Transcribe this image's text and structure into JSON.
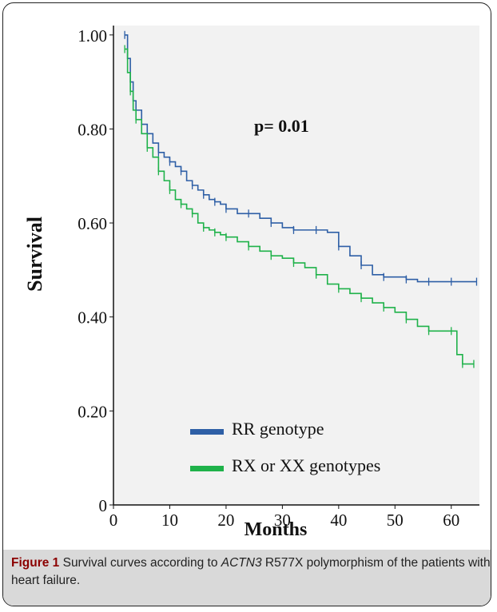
{
  "chart_data": {
    "type": "line",
    "subtype": "kaplan-meier",
    "xlabel": "Months",
    "ylabel": "Survival",
    "xlim": [
      0,
      65
    ],
    "ylim": [
      0,
      1.02
    ],
    "x_ticks": [
      "0",
      "10",
      "20",
      "30",
      "40",
      "50",
      "60"
    ],
    "y_ticks": [
      "0",
      "0.20",
      "0.40",
      "0.60",
      "0.80",
      "1.00"
    ],
    "annotation": "p= 0.01",
    "legend_placement": "bottom-left",
    "series": [
      {
        "name": "RR genotype",
        "color": "#2e5fa6",
        "x": [
          2,
          2.5,
          3,
          3.5,
          4,
          5,
          6,
          7,
          8,
          9,
          10,
          11,
          12,
          13,
          14,
          15,
          16,
          17,
          18,
          19,
          20,
          22,
          24,
          26,
          28,
          30,
          32,
          34,
          36,
          38,
          40,
          42,
          44,
          46,
          48,
          50,
          52,
          54,
          56,
          58,
          60,
          62,
          64.5
        ],
        "y": [
          1.0,
          0.95,
          0.9,
          0.86,
          0.84,
          0.81,
          0.79,
          0.77,
          0.75,
          0.74,
          0.73,
          0.72,
          0.71,
          0.69,
          0.68,
          0.67,
          0.66,
          0.65,
          0.645,
          0.64,
          0.63,
          0.62,
          0.62,
          0.61,
          0.6,
          0.59,
          0.585,
          0.585,
          0.585,
          0.58,
          0.55,
          0.53,
          0.51,
          0.49,
          0.485,
          0.485,
          0.48,
          0.475,
          0.475,
          0.475,
          0.475,
          0.475,
          0.475
        ]
      },
      {
        "name": "RX or XX genotypes",
        "color": "#1fb24a",
        "x": [
          2,
          2.5,
          3,
          3.5,
          4,
          5,
          6,
          7,
          8,
          9,
          10,
          11,
          12,
          13,
          14,
          15,
          16,
          17,
          18,
          19,
          20,
          22,
          24,
          26,
          28,
          30,
          32,
          34,
          36,
          38,
          40,
          42,
          44,
          46,
          48,
          50,
          52,
          54,
          56,
          58,
          60,
          61,
          62,
          63,
          64
        ],
        "y": [
          0.97,
          0.92,
          0.88,
          0.84,
          0.82,
          0.79,
          0.76,
          0.74,
          0.71,
          0.69,
          0.67,
          0.65,
          0.64,
          0.63,
          0.62,
          0.6,
          0.59,
          0.585,
          0.58,
          0.575,
          0.57,
          0.56,
          0.55,
          0.54,
          0.53,
          0.525,
          0.515,
          0.505,
          0.49,
          0.47,
          0.46,
          0.45,
          0.44,
          0.43,
          0.42,
          0.41,
          0.395,
          0.38,
          0.37,
          0.37,
          0.37,
          0.32,
          0.3,
          0.3,
          0.3
        ]
      }
    ]
  },
  "caption": {
    "label": "Figure 1",
    "text_before": " Survival curves according to ",
    "gene": "ACTN3",
    "text_after": " R577X polymorphism of the patients with heart failure."
  }
}
